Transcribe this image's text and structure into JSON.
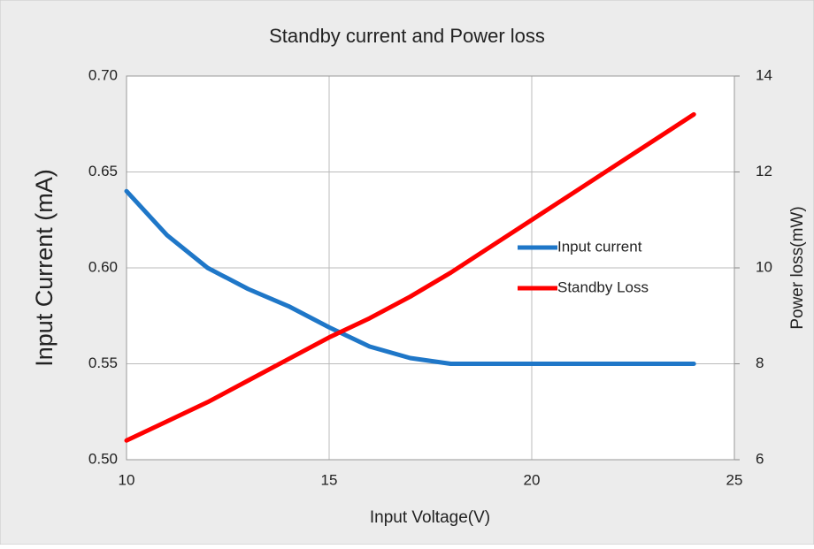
{
  "chart_data": {
    "type": "line",
    "title": "Standby current and Power loss",
    "x_label": "Input Voltage(V)",
    "y_label": "Input Current (mA)",
    "y2_label": "Power loss(mW)",
    "x": [
      10,
      11,
      12,
      13,
      14,
      15,
      16,
      17,
      18,
      19,
      20,
      21,
      22,
      23,
      24
    ],
    "series": [
      {
        "name": "Input current",
        "color": "#1f77c8",
        "axis": "y",
        "values": [
          0.64,
          0.617,
          0.6,
          0.589,
          0.58,
          0.569,
          0.559,
          0.553,
          0.55,
          0.55,
          0.55,
          0.55,
          0.55,
          0.55,
          0.55
        ]
      },
      {
        "name": "Standby Loss",
        "color": "#ff0000",
        "axis": "y2",
        "values": [
          6.4,
          6.8,
          7.2,
          7.65,
          8.1,
          8.55,
          8.95,
          9.4,
          9.9,
          10.45,
          11.0,
          11.55,
          12.1,
          12.65,
          13.2
        ]
      }
    ],
    "xlim": [
      10,
      25
    ],
    "xticks": [
      10,
      15,
      20,
      25
    ],
    "ylim": [
      0.5,
      0.7
    ],
    "yticks": [
      {
        "value": 0.5,
        "label": "0.50"
      },
      0.55,
      {
        "value": 0.6,
        "label": "0.60"
      },
      0.65,
      {
        "value": 0.7,
        "label": "0.70"
      }
    ],
    "y2lim": [
      6,
      14
    ],
    "y2ticks": [
      6,
      8,
      10,
      12,
      14
    ],
    "grid": true,
    "legend": "right"
  }
}
